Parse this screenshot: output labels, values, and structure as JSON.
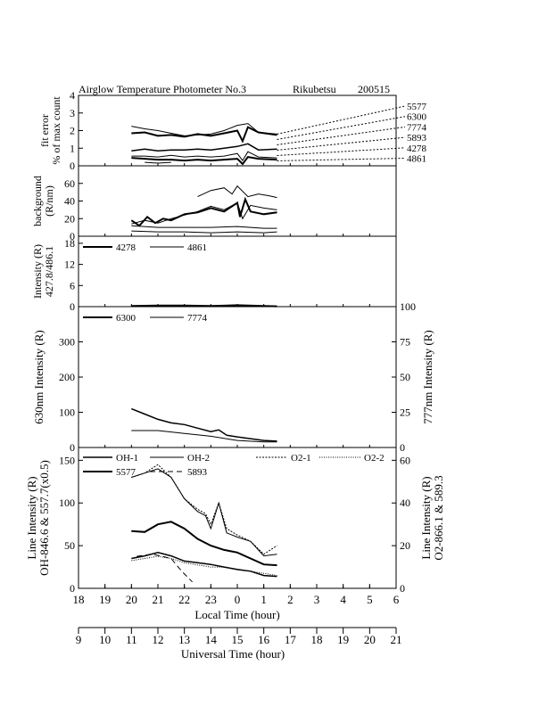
{
  "header": {
    "title": "Airglow Temperature Photometer No.3",
    "station": "Rikubetsu",
    "date": "200515"
  },
  "axes": {
    "local_time_label": "Local Time (hour)",
    "universal_time_label": "Universal Time (hour)",
    "local_ticks": [
      "18",
      "19",
      "20",
      "21",
      "22",
      "23",
      "0",
      "1",
      "2",
      "3",
      "4",
      "5",
      "6"
    ],
    "ut_ticks": [
      "9",
      "10",
      "11",
      "12",
      "13",
      "14",
      "15",
      "16",
      "17",
      "18",
      "19",
      "20",
      "21"
    ]
  },
  "chart_data": [
    {
      "id": "fit-error",
      "type": "line",
      "ylabel_lines": [
        "fit error",
        "% of max count"
      ],
      "ylim": [
        0,
        4
      ],
      "yticks": [
        "0",
        "1",
        "2",
        "3",
        "4"
      ],
      "x_unit": "local time (hour, 18-30)",
      "label_list": [
        "5577",
        "6300",
        "7774",
        "5893",
        "4278",
        "4861"
      ],
      "series": [
        {
          "name": "5577",
          "values": [
            [
              20.0,
              1.85
            ],
            [
              20.5,
              1.9
            ],
            [
              21.0,
              1.7
            ],
            [
              21.5,
              1.75
            ],
            [
              22.0,
              1.65
            ],
            [
              22.5,
              1.8
            ],
            [
              23.0,
              1.7
            ],
            [
              23.5,
              1.85
            ],
            [
              24.0,
              2.0
            ],
            [
              24.2,
              1.4
            ],
            [
              24.4,
              2.2
            ],
            [
              24.8,
              1.9
            ],
            [
              25.5,
              1.75
            ]
          ]
        },
        {
          "name": "6300",
          "values": [
            [
              20.0,
              2.25
            ],
            [
              20.5,
              2.1
            ],
            [
              21.0,
              2.0
            ],
            [
              21.5,
              1.85
            ],
            [
              22.0,
              1.7
            ],
            [
              22.5,
              1.75
            ],
            [
              23.0,
              1.8
            ],
            [
              23.5,
              2.0
            ],
            [
              24.0,
              2.3
            ],
            [
              24.4,
              2.4
            ],
            [
              24.8,
              1.9
            ],
            [
              25.5,
              1.8
            ]
          ]
        },
        {
          "name": "7774",
          "values": [
            [
              20.0,
              0.85
            ],
            [
              20.5,
              0.95
            ],
            [
              21.0,
              0.85
            ],
            [
              21.5,
              0.9
            ],
            [
              22.0,
              0.9
            ],
            [
              22.5,
              0.95
            ],
            [
              23.0,
              0.9
            ],
            [
              23.5,
              1.0
            ],
            [
              24.0,
              1.1
            ],
            [
              24.4,
              1.25
            ],
            [
              24.8,
              0.9
            ],
            [
              25.5,
              0.95
            ]
          ]
        },
        {
          "name": "5893",
          "values": [
            [
              20.0,
              0.55
            ],
            [
              20.5,
              0.55
            ],
            [
              21.0,
              0.5
            ],
            [
              21.5,
              0.6
            ],
            [
              22.0,
              0.5
            ],
            [
              22.5,
              0.55
            ],
            [
              23.0,
              0.5
            ],
            [
              23.5,
              0.55
            ],
            [
              24.0,
              0.7
            ],
            [
              24.2,
              0.3
            ],
            [
              24.4,
              0.8
            ],
            [
              24.8,
              0.5
            ],
            [
              25.5,
              0.45
            ]
          ]
        },
        {
          "name": "4278",
          "values": [
            [
              20.0,
              0.45
            ],
            [
              20.5,
              0.4
            ],
            [
              21.0,
              0.35
            ],
            [
              21.5,
              0.35
            ],
            [
              22.0,
              0.3
            ],
            [
              22.5,
              0.35
            ],
            [
              23.0,
              0.3
            ],
            [
              23.5,
              0.35
            ],
            [
              24.0,
              0.4
            ],
            [
              24.2,
              0.1
            ],
            [
              24.4,
              0.5
            ],
            [
              24.8,
              0.4
            ],
            [
              25.5,
              0.35
            ]
          ]
        },
        {
          "name": "4861",
          "values": [
            [
              20.5,
              0.2
            ],
            [
              21.0,
              0.15
            ],
            [
              21.5,
              0.2
            ]
          ]
        }
      ]
    },
    {
      "id": "background",
      "type": "line",
      "ylabel_lines": [
        "background",
        "(R/nm)"
      ],
      "ylim": [
        0,
        80
      ],
      "yticks": [
        "0",
        "20",
        "40",
        "60"
      ],
      "series": [
        {
          "name": "5577",
          "values": [
            [
              20.0,
              18
            ],
            [
              20.3,
              12
            ],
            [
              20.6,
              22
            ],
            [
              20.9,
              15
            ],
            [
              21.2,
              20
            ],
            [
              21.5,
              18
            ],
            [
              22.0,
              25
            ],
            [
              22.5,
              27
            ],
            [
              23.0,
              32
            ],
            [
              23.5,
              28
            ],
            [
              24.0,
              38
            ],
            [
              24.1,
              22
            ],
            [
              24.3,
              42
            ],
            [
              24.5,
              28
            ],
            [
              25.0,
              25
            ],
            [
              25.5,
              27
            ]
          ]
        },
        {
          "name": "6300",
          "values": [
            [
              22.5,
              45
            ],
            [
              23.0,
              52
            ],
            [
              23.5,
              55
            ],
            [
              23.8,
              48
            ],
            [
              24.0,
              57
            ],
            [
              24.4,
              45
            ],
            [
              24.8,
              48
            ],
            [
              25.2,
              46
            ],
            [
              25.5,
              44
            ]
          ]
        },
        {
          "name": "7774",
          "values": [
            [
              20.0,
              14
            ],
            [
              20.5,
              18
            ],
            [
              21.0,
              15
            ],
            [
              21.5,
              20
            ],
            [
              22.0,
              24
            ],
            [
              22.5,
              28
            ],
            [
              23.0,
              34
            ],
            [
              23.5,
              30
            ],
            [
              24.0,
              38
            ],
            [
              24.2,
              20
            ],
            [
              24.5,
              35
            ],
            [
              25.0,
              32
            ],
            [
              25.5,
              30
            ]
          ]
        },
        {
          "name": "5893",
          "values": [
            [
              20.0,
              12
            ],
            [
              21.0,
              10
            ],
            [
              22.0,
              10
            ],
            [
              23.0,
              10
            ],
            [
              24.0,
              11
            ],
            [
              25.0,
              9
            ],
            [
              25.5,
              9
            ]
          ]
        },
        {
          "name": "4278",
          "values": [
            [
              20.0,
              6
            ],
            [
              21.0,
              5
            ],
            [
              22.0,
              5
            ],
            [
              23.0,
              4
            ],
            [
              24.0,
              5
            ],
            [
              25.0,
              4
            ],
            [
              25.5,
              5
            ]
          ]
        }
      ]
    },
    {
      "id": "blue-lines",
      "type": "line",
      "ylabel_lines": [
        "Intensity (R)",
        "427.8/486.1"
      ],
      "ylim": [
        0,
        20
      ],
      "yticks": [
        "0",
        "6",
        "12",
        "18"
      ],
      "series": [
        {
          "name": "4278",
          "values": [
            [
              20.0,
              0.2
            ],
            [
              21.0,
              0.3
            ],
            [
              22.0,
              0.3
            ],
            [
              23.0,
              0.2
            ],
            [
              24.0,
              0.4
            ],
            [
              25.0,
              0.2
            ],
            [
              25.5,
              0.1
            ]
          ]
        },
        {
          "name": "4861",
          "values": [
            [
              20.0,
              0.1
            ],
            [
              21.0,
              0.2
            ],
            [
              22.0,
              0.2
            ],
            [
              23.0,
              0.1
            ],
            [
              24.0,
              0.3
            ],
            [
              25.0,
              0.1
            ],
            [
              25.5,
              0.1
            ]
          ]
        }
      ]
    },
    {
      "id": "red-oxygen",
      "type": "line",
      "ylabel_left": "630nm Intensity (R)",
      "ylabel_right": "777nm Intensity (R)",
      "ylim_left": [
        0,
        400
      ],
      "ylim_right": [
        0,
        100
      ],
      "yticks_left": [
        "0",
        "100",
        "200",
        "300"
      ],
      "yticks_right": [
        "0",
        "25",
        "50",
        "75",
        "100"
      ],
      "series": [
        {
          "name": "6300",
          "axis": "left",
          "values": [
            [
              20.0,
              110
            ],
            [
              20.5,
              95
            ],
            [
              21.0,
              80
            ],
            [
              21.5,
              70
            ],
            [
              22.0,
              65
            ],
            [
              22.5,
              55
            ],
            [
              23.0,
              45
            ],
            [
              23.3,
              50
            ],
            [
              23.6,
              35
            ],
            [
              24.0,
              30
            ],
            [
              24.5,
              25
            ],
            [
              25.0,
              20
            ],
            [
              25.5,
              18
            ]
          ]
        },
        {
          "name": "7774",
          "axis": "right",
          "values": [
            [
              20.0,
              12
            ],
            [
              21.0,
              12
            ],
            [
              22.0,
              10
            ],
            [
              23.0,
              8
            ],
            [
              24.0,
              5
            ],
            [
              25.0,
              4
            ],
            [
              25.5,
              4
            ]
          ]
        }
      ]
    },
    {
      "id": "line-intensity",
      "type": "line",
      "ylabel_left_lines": [
        "Line Intensity (R)",
        "OH-846.6 & 557.7(x0.5)"
      ],
      "ylabel_right_lines": [
        "Line Intensity (R)",
        "O2-866.1 & 589.3"
      ],
      "ylim_left": [
        0,
        165
      ],
      "ylim_right": [
        0,
        66
      ],
      "yticks_left": [
        "0",
        "50",
        "100",
        "150"
      ],
      "yticks_right": [
        "0",
        "20",
        "40",
        "60"
      ],
      "legend": [
        "OH-1",
        "OH-2",
        "O2-1",
        "O2-2",
        "5577",
        "5893"
      ],
      "series": [
        {
          "name": "OH-1",
          "axis": "left",
          "values": [
            [
              20.0,
              130
            ],
            [
              20.5,
              135
            ],
            [
              21.0,
              140
            ],
            [
              21.5,
              130
            ],
            [
              22.0,
              105
            ],
            [
              22.5,
              90
            ],
            [
              22.8,
              85
            ],
            [
              23.0,
              70
            ],
            [
              23.3,
              100
            ],
            [
              23.6,
              65
            ],
            [
              24.0,
              60
            ],
            [
              24.5,
              55
            ],
            [
              25.0,
              38
            ],
            [
              25.5,
              40
            ]
          ]
        },
        {
          "name": "OH-2",
          "axis": "left",
          "values": [
            [
              20.0,
              35
            ],
            [
              20.5,
              38
            ],
            [
              21.0,
              42
            ],
            [
              21.5,
              38
            ],
            [
              22.0,
              32
            ],
            [
              22.5,
              30
            ],
            [
              23.0,
              28
            ],
            [
              23.5,
              25
            ],
            [
              24.0,
              22
            ],
            [
              24.5,
              20
            ],
            [
              25.0,
              15
            ],
            [
              25.5,
              14
            ]
          ]
        },
        {
          "name": "O2-1",
          "axis": "right",
          "values": [
            [
              20.0,
              52
            ],
            [
              20.5,
              54
            ],
            [
              21.0,
              58
            ],
            [
              21.5,
              52
            ],
            [
              22.0,
              42
            ],
            [
              22.5,
              37
            ],
            [
              22.8,
              35
            ],
            [
              23.0,
              30
            ],
            [
              23.3,
              40
            ],
            [
              23.6,
              28
            ],
            [
              24.0,
              25
            ],
            [
              24.5,
              22
            ],
            [
              25.0,
              16
            ],
            [
              25.5,
              20
            ]
          ]
        },
        {
          "name": "O2-2",
          "axis": "right",
          "values": [
            [
              20.0,
              13
            ],
            [
              20.5,
              14
            ],
            [
              21.0,
              15
            ],
            [
              21.5,
              14
            ],
            [
              22.0,
              12
            ],
            [
              22.5,
              11
            ],
            [
              23.0,
              10
            ],
            [
              23.5,
              10
            ],
            [
              24.0,
              9
            ],
            [
              24.5,
              8
            ],
            [
              25.0,
              7
            ],
            [
              25.5,
              6
            ]
          ]
        },
        {
          "name": "5577",
          "axis": "left",
          "values": [
            [
              20.0,
              67
            ],
            [
              20.5,
              66
            ],
            [
              21.0,
              75
            ],
            [
              21.5,
              78
            ],
            [
              22.0,
              70
            ],
            [
              22.5,
              58
            ],
            [
              23.0,
              50
            ],
            [
              23.5,
              45
            ],
            [
              24.0,
              42
            ],
            [
              24.5,
              35
            ],
            [
              25.0,
              28
            ],
            [
              25.5,
              27
            ]
          ]
        },
        {
          "name": "5893",
          "axis": "right",
          "values": [
            [
              20.2,
              15
            ],
            [
              20.8,
              16
            ],
            [
              21.5,
              14
            ],
            [
              21.9,
              8
            ],
            [
              22.3,
              3
            ]
          ]
        }
      ]
    }
  ]
}
